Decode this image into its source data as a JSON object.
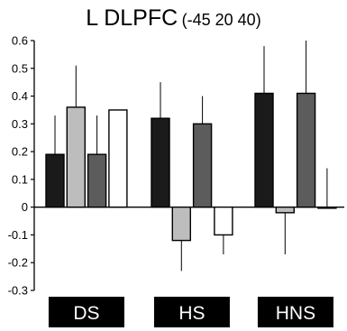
{
  "title": {
    "main": "L DLPFC",
    "coords": "(-45 20 40)"
  },
  "chart_data": {
    "type": "bar",
    "title": "L DLPFC (-45 20 40)",
    "xlabel": "",
    "ylabel": "",
    "ylim": [
      -0.3,
      0.6
    ],
    "yticks": [
      "0.6",
      "0.5",
      "0.4",
      "0.3",
      "0.2",
      "0.1",
      "0",
      "-0.1",
      "-0.2",
      "-0.3"
    ],
    "ytick_values": [
      0.6,
      0.5,
      0.4,
      0.3,
      0.2,
      0.1,
      0,
      -0.1,
      -0.2,
      -0.3
    ],
    "categories": [
      "DS",
      "HS",
      "HNS"
    ],
    "grid": false,
    "legend": "none",
    "series": [
      {
        "color": "#1a1a1a",
        "values": [
          0.19,
          0.32,
          0.41
        ],
        "error_upper": [
          0.33,
          0.45,
          0.58
        ]
      },
      {
        "color": "#bdbdbd",
        "values": [
          0.36,
          -0.12,
          -0.02
        ],
        "error_lower": [
          null,
          -0.23,
          -0.17
        ],
        "error_upper": [
          0.51,
          null,
          null
        ]
      },
      {
        "color": "#5c5c5c",
        "values": [
          0.19,
          0.3,
          0.41
        ],
        "error_upper": [
          0.33,
          0.4,
          0.6
        ]
      },
      {
        "color": "#ffffff",
        "values": [
          0.35,
          -0.1,
          0.0
        ],
        "error_lower": [
          null,
          -0.17,
          null
        ],
        "error_upper": [
          null,
          null,
          0.14
        ]
      }
    ]
  }
}
